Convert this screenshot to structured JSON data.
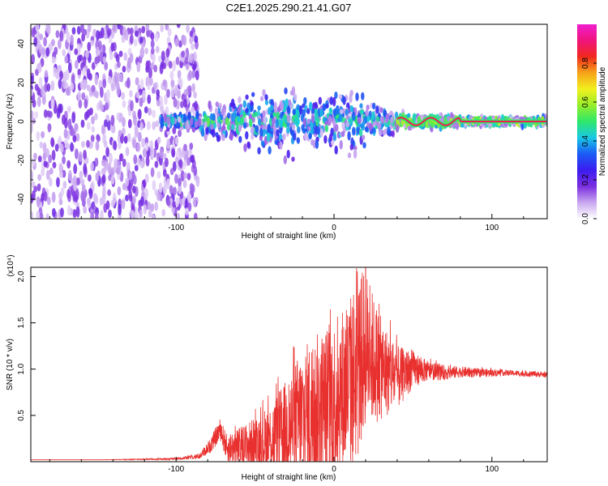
{
  "title": "C2E1.2025.290.21.41.G07",
  "colors": {
    "line": "#e8302e",
    "axis": "#000000",
    "colorbar": [
      "#ffffff",
      "#c9a7f0",
      "#7a2de0",
      "#3c1cf0",
      "#1a5cf5",
      "#19c8e6",
      "#2ee86a",
      "#96ee2a",
      "#f2f01e",
      "#f7a31a",
      "#f0281e",
      "#f0147c",
      "#f01ecf"
    ]
  },
  "chart_data": [
    {
      "type": "heatmap",
      "title": "",
      "xlabel": "Height of straight line (km)",
      "ylabel": "Frequency (Hz)",
      "xlim": [
        -192,
        135
      ],
      "ylim": [
        -50,
        50
      ],
      "x_ticks": [
        -100,
        0,
        100
      ],
      "x_tick_labels": [
        "-100",
        "0",
        "100"
      ],
      "y_ticks": [
        -40,
        -20,
        0,
        20,
        40
      ],
      "y_tick_labels": [
        "-40",
        "-20",
        "0",
        "20",
        "40"
      ],
      "noise_region_x": [
        -192,
        -86
      ],
      "signal_region_x": [
        -110,
        135
      ],
      "signal_band_center_hz": 0,
      "colorbar": {
        "label": "Normalized spectral amplitude",
        "range": [
          0,
          1
        ],
        "ticks": [
          0.0,
          0.2,
          0.4,
          0.6,
          0.8
        ],
        "tick_labels": [
          "0.0",
          "0.2",
          "0.4",
          "0.6",
          "0.8"
        ]
      }
    },
    {
      "type": "line",
      "title": "",
      "xlabel": "Height of straight line (km)",
      "ylabel": "SNR (10 * v/v)",
      "y_scale_label": "(x10⁴)",
      "xlim": [
        -192,
        135
      ],
      "ylim": [
        0,
        2.1
      ],
      "x_ticks": [
        -100,
        0,
        100
      ],
      "x_tick_labels": [
        "-100",
        "0",
        "100"
      ],
      "y_ticks": [
        0.5,
        1.0,
        1.5,
        2.0
      ],
      "y_tick_labels": [
        "0.5",
        "1.0",
        "1.5",
        "2.0"
      ],
      "series": [
        {
          "name": "SNR",
          "x": [
            -192,
            -150,
            -100,
            -85,
            -78,
            -72,
            -68,
            -60,
            -50,
            -40,
            -30,
            -20,
            -10,
            0,
            10,
            15,
            20,
            25,
            30,
            40,
            50,
            60,
            70,
            80,
            90,
            100,
            110,
            120,
            135
          ],
          "y": [
            0.02,
            0.02,
            0.03,
            0.06,
            0.18,
            0.35,
            0.15,
            0.15,
            0.2,
            0.25,
            0.35,
            0.45,
            0.55,
            0.65,
            0.85,
            1.0,
            1.25,
            1.1,
            1.0,
            0.9,
            1.0,
            0.98,
            0.96,
            0.97,
            0.96,
            0.96,
            0.96,
            0.95,
            0.94
          ],
          "spread": [
            0.0,
            0.0,
            0.01,
            0.03,
            0.08,
            0.12,
            0.15,
            0.22,
            0.28,
            0.38,
            0.55,
            0.8,
            0.85,
            0.9,
            0.95,
            1.0,
            0.85,
            0.7,
            0.55,
            0.35,
            0.2,
            0.1,
            0.08,
            0.06,
            0.05,
            0.04,
            0.03,
            0.03,
            0.03
          ],
          "peak": {
            "x": 20,
            "y": 2.1
          }
        }
      ]
    }
  ]
}
